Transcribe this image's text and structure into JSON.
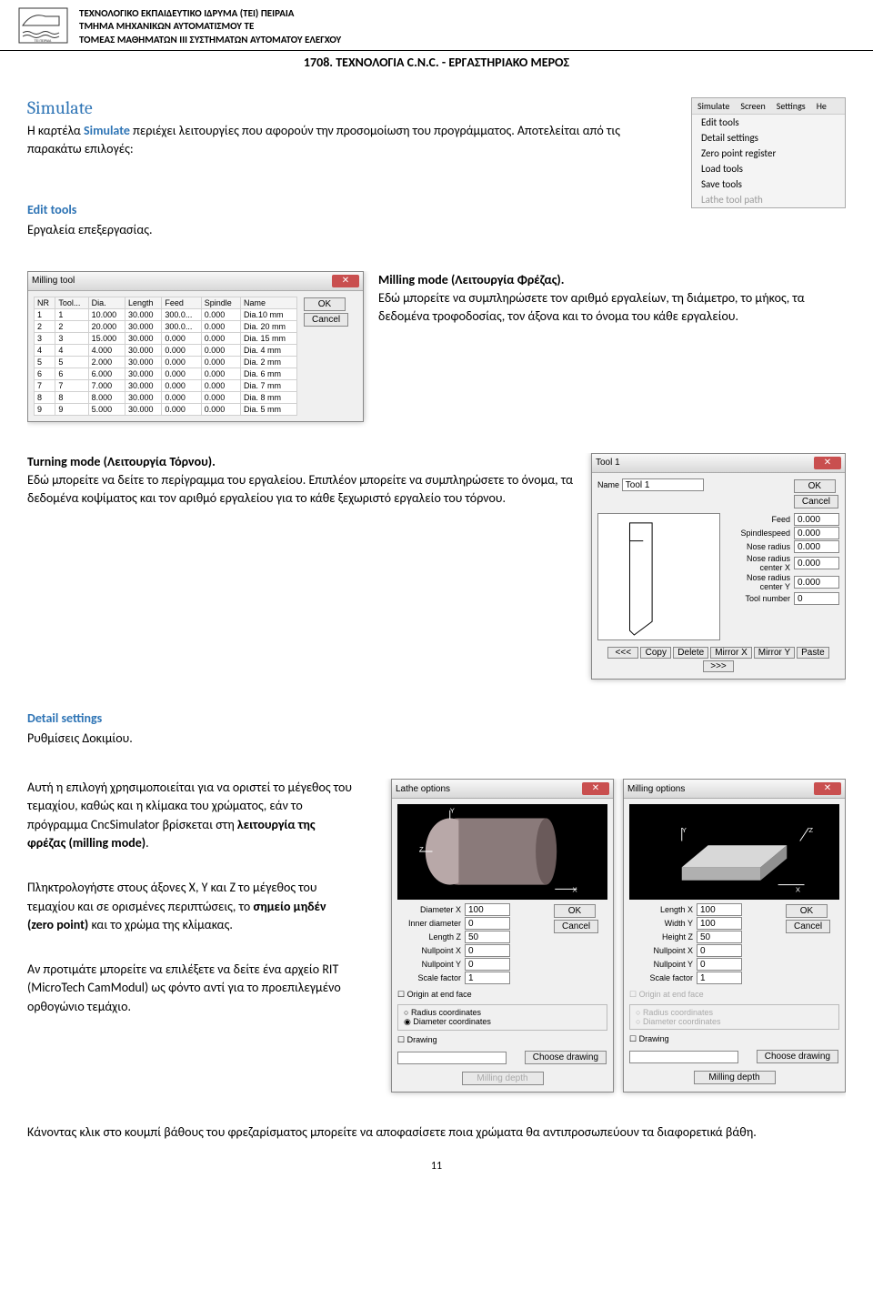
{
  "header": {
    "line1": "ΤΕΧΝΟΛΟΓΙΚΟ ΕΚΠΑΙΔΕΥΤΙΚΟ ΙΔΡΥΜΑ (ΤΕΙ) ΠΕΙΡΑΙΑ",
    "line2": "ΤΜΗΜΑ ΜΗΧΑΝΙΚΩΝ ΑΥΤΟΜΑΤΙΣΜΟΥ ΤΕ",
    "line3": "ΤΟΜΕΑΣ ΜΑΘΗΜΑΤΩΝ III ΣΥΣΤΗΜΑΤΩΝ ΑΥΤΟΜΑΤΟΥ ΕΛΕΓΧΟΥ",
    "course": "1708. ΤΕΧΝΟΛΟΓΙΑ C.N.C. - ΕΡΓΑΣΤΗΡΙΑΚΟ ΜΕΡΟΣ"
  },
  "simulate": {
    "heading": "Simulate",
    "text_before": "Η καρτέλα ",
    "word": "Simulate",
    "text_after": " περιέχει λειτουργίες που αφορούν την προσομοίωση του προγράμματος. Αποτελείται από τις παρακάτω επιλογές:"
  },
  "menu": {
    "tabs": [
      "Simulate",
      "Screen",
      "Settings",
      "He"
    ],
    "items": [
      "Edit tools",
      "Detail settings",
      "Zero point register",
      "Load tools",
      "Save tools"
    ],
    "dim_item": "Lathe tool path"
  },
  "edit_tools": {
    "heading": "Edit tools",
    "text": "Εργαλεία επεξεργασίας."
  },
  "milling_mode": {
    "title": "Milling mode (Λειτουργία Φρέζας).",
    "text": "Εδώ μπορείτε να συμπληρώσετε τον αριθμό εργαλείων, τη διάμετρο, το μήκος, τα δεδομένα τροφοδοσίας, τον άξονα και το όνομα του κάθε εργαλείου."
  },
  "milling_dialog": {
    "title": "Milling tool",
    "columns": [
      "NR",
      "Tool...",
      "Dia.",
      "Length",
      "Feed",
      "Spindle",
      "Name"
    ],
    "rows": [
      [
        "1",
        "1",
        "10.000",
        "30.000",
        "300.0...",
        "0.000",
        "Dia.10 mm"
      ],
      [
        "2",
        "2",
        "20.000",
        "30.000",
        "300.0...",
        "0.000",
        "Dia. 20 mm"
      ],
      [
        "3",
        "3",
        "15.000",
        "30.000",
        "0.000",
        "0.000",
        "Dia. 15 mm"
      ],
      [
        "4",
        "4",
        "4.000",
        "30.000",
        "0.000",
        "0.000",
        "Dia. 4 mm"
      ],
      [
        "5",
        "5",
        "2.000",
        "30.000",
        "0.000",
        "0.000",
        "Dia. 2 mm"
      ],
      [
        "6",
        "6",
        "6.000",
        "30.000",
        "0.000",
        "0.000",
        "Dia. 6 mm"
      ],
      [
        "7",
        "7",
        "7.000",
        "30.000",
        "0.000",
        "0.000",
        "Dia. 7 mm"
      ],
      [
        "8",
        "8",
        "8.000",
        "30.000",
        "0.000",
        "0.000",
        "Dia. 8 mm"
      ],
      [
        "9",
        "9",
        "5.000",
        "30.000",
        "0.000",
        "0.000",
        "Dia. 5 mm"
      ]
    ],
    "ok": "OK",
    "cancel": "Cancel"
  },
  "turning_mode": {
    "title": "Turning mode (Λειτουργία Τόρνου).",
    "text": "Εδώ μπορείτε να δείτε το περίγραμμα του εργαλείου. Επιπλέον μπορείτε να συμπληρώσετε το όνομα, τα δεδομένα κοψίματος και τον αριθμό εργαλείου για το κάθε ξεχωριστό εργαλείο του τόρνου."
  },
  "tool1_dialog": {
    "title": "Tool 1",
    "name_label": "Name",
    "name_value": "Tool 1",
    "ok": "OK",
    "cancel": "Cancel",
    "fields": [
      {
        "label": "Feed",
        "value": "0.000"
      },
      {
        "label": "Spindlespeed",
        "value": "0.000"
      },
      {
        "label": "Nose radius",
        "value": "0.000"
      },
      {
        "label": "Nose radius center X",
        "value": "0.000"
      },
      {
        "label": "Nose radius center Y",
        "value": "0.000"
      },
      {
        "label": "Tool number",
        "value": "0"
      }
    ],
    "toolbar": [
      "<<<",
      "Copy",
      "Delete",
      "Mirror X",
      "Mirror Y",
      "Paste",
      ">>>"
    ]
  },
  "detail_settings": {
    "heading": "Detail settings",
    "text": "Ρυθμίσεις Δοκιμίου."
  },
  "para1": {
    "p1": "Αυτή η επιλογή χρησιμοποιείται για να οριστεί το μέγεθος του τεμαχίου, καθώς και η κλίμακα του χρώματος, εάν το πρόγραμμα CncSimulator βρίσκεται στη ",
    "bold1": "λειτουργία της φρέζας (milling mode)",
    "p1_end": "."
  },
  "para2": {
    "p1": "Πληκτρολογήστε στους άξονες X, Y και Z το μέγεθος του τεμαχίου και σε ορισμένες περιπτώσεις, το ",
    "bold1": "σημείο μηδέν (zero point)",
    "p1_end": " και το χρώμα της κλίμακας."
  },
  "para3": "Αν προτιμάτε μπορείτε να επιλέξετε να δείτε ένα αρχείο RIT (MicroTech CamModul) ως φόντο αντί για το προεπιλεγμένο ορθογώνιο τεμάχιο.",
  "para4": "Κάνοντας κλικ στο κουμπί βάθους του φρεζαρίσματος μπορείτε να αποφασίσετε ποια χρώματα θα αντιπροσωπεύουν τα διαφορετικά βάθη.",
  "lathe_options": {
    "title": "Lathe options",
    "ok": "OK",
    "cancel": "Cancel",
    "fields": [
      {
        "label": "Diameter X",
        "value": "100"
      },
      {
        "label": "Inner diameter",
        "value": "0"
      },
      {
        "label": "Length  Z",
        "value": "50"
      },
      {
        "label": "Nullpoint X",
        "value": "0"
      },
      {
        "label": "Nullpoint Y",
        "value": "0"
      },
      {
        "label": "Scale factor",
        "value": "1"
      }
    ],
    "origin": "Origin at end face",
    "radio1": "Radius coordinates",
    "radio2": "Diameter coordinates",
    "drawing": "Drawing",
    "choose": "Choose drawing",
    "depth": "Milling depth"
  },
  "milling_options": {
    "title": "Milling options",
    "ok": "OK",
    "cancel": "Cancel",
    "fields": [
      {
        "label": "Length X",
        "value": "100"
      },
      {
        "label": "Width Y",
        "value": "100"
      },
      {
        "label": "Height Z",
        "value": "50"
      },
      {
        "label": "Nullpoint X",
        "value": "0"
      },
      {
        "label": "Nullpoint Y",
        "value": "0"
      },
      {
        "label": "Scale factor",
        "value": "1"
      }
    ],
    "origin": "Origin at end face",
    "radio1": "Radius coordinates",
    "radio2": "Diameter coordinates",
    "drawing": "Drawing",
    "choose": "Choose drawing",
    "depth": "Milling depth"
  },
  "page_number": "11",
  "colors": {
    "blue": "#2e74b5",
    "body": "#000000",
    "bg": "#ffffff"
  }
}
